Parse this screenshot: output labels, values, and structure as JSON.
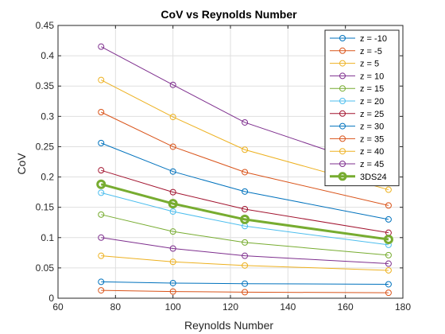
{
  "chart_data": {
    "type": "line",
    "title": "CoV vs Reynolds Number",
    "xlabel": "Reynolds Number",
    "ylabel": "CoV",
    "xlim": [
      60,
      180
    ],
    "ylim": [
      0,
      0.45
    ],
    "xticks": [
      60,
      80,
      100,
      120,
      140,
      160,
      180
    ],
    "yticks": [
      0,
      0.05,
      0.1,
      0.15,
      0.2,
      0.25,
      0.3,
      0.35,
      0.4,
      0.45
    ],
    "grid": true,
    "legend_position": "top-right",
    "x": [
      75,
      100,
      125,
      175
    ],
    "series": [
      {
        "name": "z = -10",
        "color": "#0072BD",
        "values": [
          0.027,
          0.025,
          0.024,
          0.023
        ]
      },
      {
        "name": "z = -5",
        "color": "#D95319",
        "values": [
          0.013,
          0.011,
          0.01,
          0.009
        ]
      },
      {
        "name": "z = 5",
        "color": "#EDB120",
        "values": [
          0.07,
          0.06,
          0.054,
          0.046
        ]
      },
      {
        "name": "z = 10",
        "color": "#7E2F8E",
        "values": [
          0.1,
          0.082,
          0.07,
          0.057
        ]
      },
      {
        "name": "z = 15",
        "color": "#77AC30",
        "values": [
          0.138,
          0.11,
          0.092,
          0.071
        ]
      },
      {
        "name": "z = 20",
        "color": "#4DBEEE",
        "values": [
          0.174,
          0.143,
          0.119,
          0.088
        ]
      },
      {
        "name": "z = 25",
        "color": "#A2142F",
        "values": [
          0.211,
          0.175,
          0.147,
          0.108
        ]
      },
      {
        "name": "z = 30",
        "color": "#0072BD",
        "values": [
          0.256,
          0.209,
          0.176,
          0.13
        ]
      },
      {
        "name": "z = 35",
        "color": "#D95319",
        "values": [
          0.307,
          0.25,
          0.208,
          0.153
        ]
      },
      {
        "name": "z = 40",
        "color": "#EDB120",
        "values": [
          0.36,
          0.299,
          0.245,
          0.179
        ]
      },
      {
        "name": "z = 45",
        "color": "#7E2F8E",
        "values": [
          0.415,
          0.352,
          0.29,
          0.21
        ]
      },
      {
        "name": "3DS24",
        "color": "#77AC30",
        "values": [
          0.188,
          0.156,
          0.13,
          0.097
        ],
        "bold": true
      }
    ]
  }
}
